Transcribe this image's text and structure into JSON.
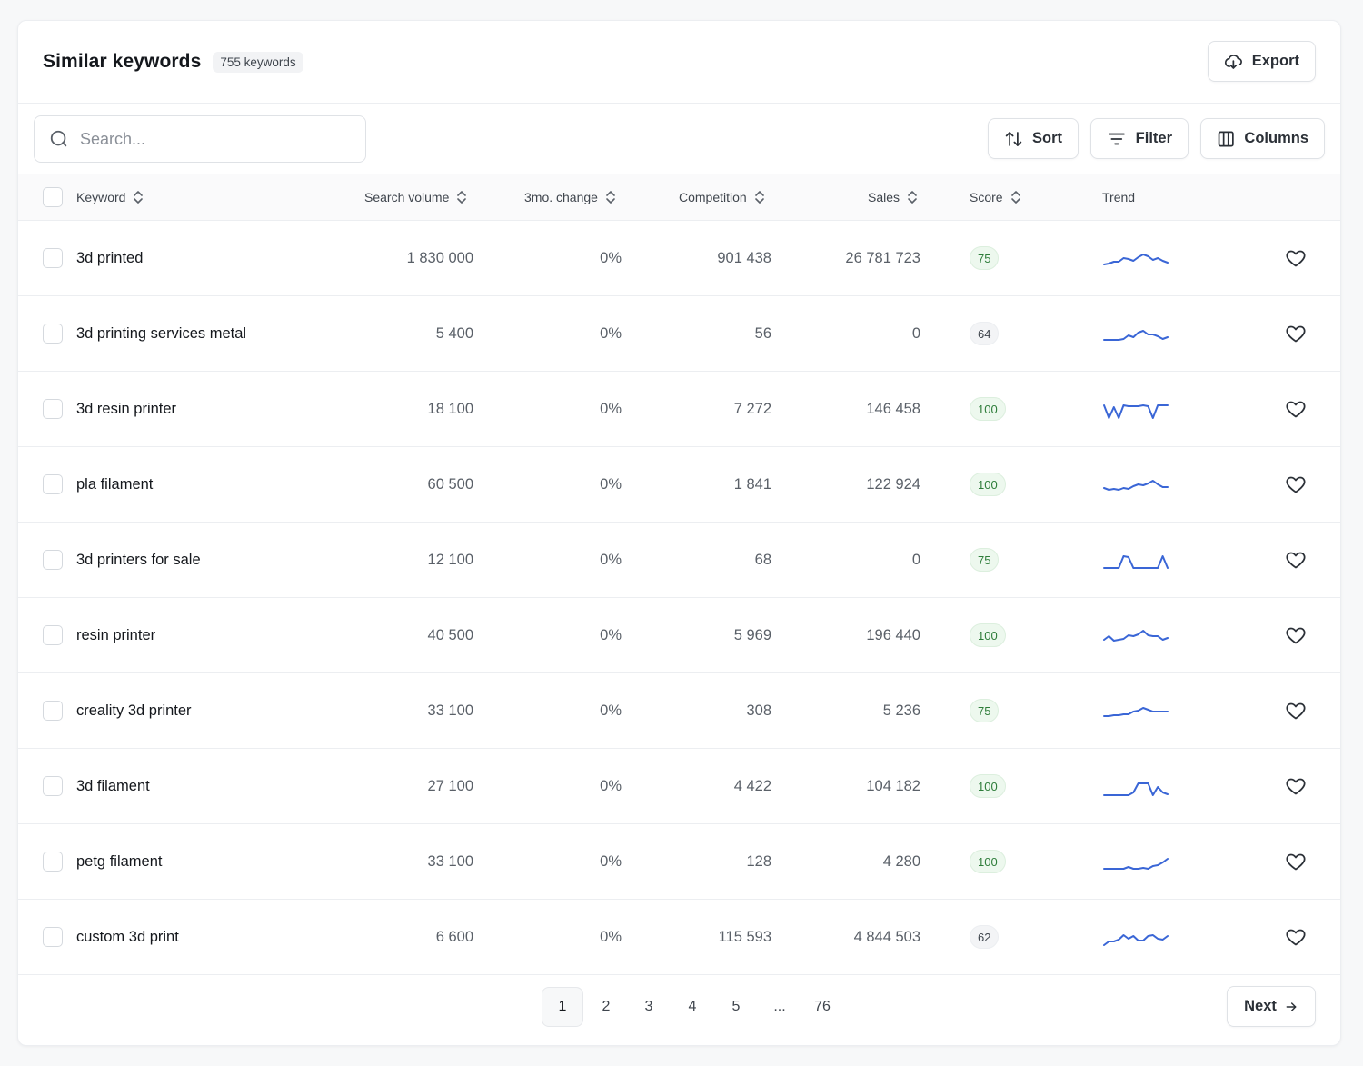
{
  "header": {
    "title": "Similar keywords",
    "count": "755 keywords",
    "export_label": "Export"
  },
  "toolbar": {
    "search_placeholder": "Search...",
    "sort_label": "Sort",
    "filter_label": "Filter",
    "columns_label": "Columns"
  },
  "columns": {
    "keyword": "Keyword",
    "search_volume": "Search volume",
    "change": "3mo. change",
    "competition": "Competition",
    "sales": "Sales",
    "score": "Score",
    "trend": "Trend"
  },
  "rows": [
    {
      "keyword": "3d printed",
      "volume": "1 830 000",
      "change": "0%",
      "competition": "901 438",
      "sales": "26 781 723",
      "score": "75",
      "score_style": "green",
      "trend": [
        14,
        13,
        11,
        11,
        7,
        8,
        10,
        6,
        3,
        5,
        9,
        7,
        10,
        12
      ]
    },
    {
      "keyword": "3d printing services metal",
      "volume": "5 400",
      "change": "0%",
      "competition": "56",
      "sales": "0",
      "score": "64",
      "score_style": "gray",
      "trend": [
        14,
        14,
        14,
        14,
        13,
        9,
        11,
        6,
        4,
        8,
        8,
        10,
        13,
        11
      ]
    },
    {
      "keyword": "3d resin printer",
      "volume": "18 100",
      "change": "0%",
      "competition": "7 272",
      "sales": "146 458",
      "score": "100",
      "score_style": "green",
      "trend": [
        3,
        17,
        5,
        17,
        3,
        4,
        4,
        4,
        3,
        4,
        17,
        3,
        3,
        3
      ]
    },
    {
      "keyword": "pla filament",
      "volume": "60 500",
      "change": "0%",
      "competition": "1 841",
      "sales": "122 924",
      "score": "100",
      "score_style": "green",
      "trend": [
        11,
        13,
        12,
        13,
        11,
        12,
        9,
        7,
        8,
        6,
        3,
        7,
        10,
        10
      ]
    },
    {
      "keyword": "3d printers for sale",
      "volume": "12 100",
      "change": "0%",
      "competition": "68",
      "sales": "0",
      "score": "75",
      "score_style": "green",
      "trend": [
        16,
        16,
        16,
        16,
        3,
        4,
        16,
        16,
        16,
        16,
        16,
        16,
        3,
        16
      ]
    },
    {
      "keyword": "resin printer",
      "volume": "40 500",
      "change": "0%",
      "competition": "5 969",
      "sales": "196 440",
      "score": "100",
      "score_style": "green",
      "trend": [
        12,
        8,
        13,
        12,
        11,
        7,
        8,
        6,
        2,
        7,
        8,
        8,
        12,
        10
      ]
    },
    {
      "keyword": "creality 3d printer",
      "volume": "33 100",
      "change": "0%",
      "competition": "308",
      "sales": "5 236",
      "score": "75",
      "score_style": "green",
      "trend": [
        13,
        13,
        12,
        12,
        11,
        11,
        8,
        7,
        4,
        6,
        8,
        8,
        8,
        8
      ]
    },
    {
      "keyword": "3d filament",
      "volume": "27 100",
      "change": "0%",
      "competition": "4 422",
      "sales": "104 182",
      "score": "100",
      "score_style": "green",
      "trend": [
        17,
        17,
        17,
        17,
        17,
        17,
        14,
        4,
        4,
        4,
        17,
        8,
        14,
        16
      ]
    },
    {
      "keyword": "petg filament",
      "volume": "33 100",
      "change": "0%",
      "competition": "128",
      "sales": "4 280",
      "score": "100",
      "score_style": "green",
      "trend": [
        15,
        15,
        15,
        15,
        15,
        13,
        15,
        15,
        14,
        15,
        12,
        11,
        8,
        4
      ]
    },
    {
      "keyword": "custom 3d print",
      "volume": "6 600",
      "change": "0%",
      "competition": "115 593",
      "sales": "4 844 503",
      "score": "62",
      "score_style": "gray",
      "trend": [
        16,
        12,
        12,
        10,
        5,
        9,
        6,
        11,
        11,
        6,
        5,
        9,
        10,
        6
      ]
    }
  ],
  "pagination": {
    "pages": [
      "1",
      "2",
      "3",
      "4",
      "5",
      "...",
      "76"
    ],
    "current": "1",
    "next_label": "Next"
  },
  "colors": {
    "trend_line": "#3a66d6",
    "score_green_bg": "#edf8ee",
    "score_green_text": "#2e7d3a"
  }
}
